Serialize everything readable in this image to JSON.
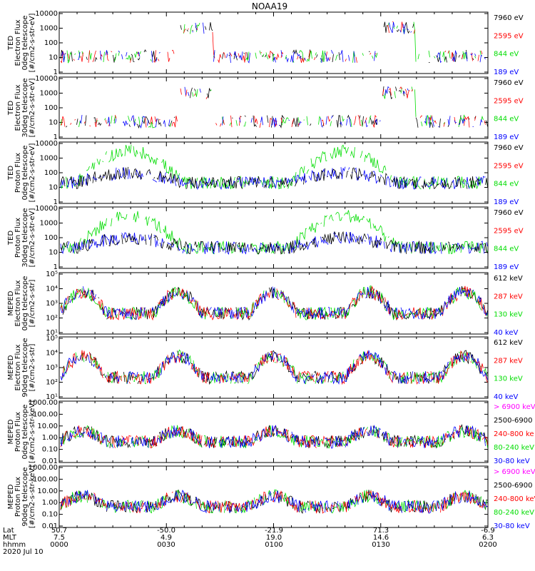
{
  "title": "NOAA19",
  "date": "2020 Jul 10",
  "colors": {
    "black": "#000000",
    "red": "#ff0000",
    "green": "#00dd00",
    "blue": "#0000ff",
    "magenta": "#ff00ff"
  },
  "axis_footer": {
    "labels": [
      "Lat",
      "MLT",
      "hhmm"
    ],
    "ticks": [
      {
        "lat": "50.7",
        "mlt": "7.5",
        "hhmm": "0000"
      },
      {
        "lat": "-50.0",
        "mlt": "4.9",
        "hhmm": "0030"
      },
      {
        "lat": "-21.9",
        "mlt": "19.0",
        "hhmm": "0100"
      },
      {
        "lat": "71.3",
        "mlt": "14.6",
        "hhmm": "0130"
      },
      {
        "lat": "-6.9",
        "mlt": "6.3",
        "hhmm": "0200"
      }
    ]
  },
  "chart_data": [
    {
      "type": "line",
      "ylabel": [
        "TED",
        "Electron Flux",
        "0deg telescope",
        "[#/cm2-s-str-eV]"
      ],
      "yticks": [
        "10000",
        "1000",
        "100",
        "10",
        "1"
      ],
      "ylim": [
        1,
        10000
      ],
      "yscale": "log",
      "series": [
        {
          "name": "7960 eV",
          "color": "black"
        },
        {
          "name": "2595 eV",
          "color": "red"
        },
        {
          "name": "844 eV",
          "color": "green"
        },
        {
          "name": "189 eV",
          "color": "blue"
        }
      ]
    },
    {
      "type": "line",
      "ylabel": [
        "TED",
        "Electron Flux",
        "30deg telescope",
        "[#/cm2-s-str-eV]"
      ],
      "yticks": [
        "10000",
        "1000",
        "100",
        "10",
        "1"
      ],
      "ylim": [
        1,
        10000
      ],
      "yscale": "log",
      "series": [
        {
          "name": "7960 eV",
          "color": "black"
        },
        {
          "name": "2595 eV",
          "color": "red"
        },
        {
          "name": "844 eV",
          "color": "green"
        },
        {
          "name": "189 eV",
          "color": "blue"
        }
      ]
    },
    {
      "type": "line",
      "ylabel": [
        "TED",
        "Proton Flux",
        "0deg telescope",
        "[#/cm2-s-str-eV]"
      ],
      "yticks": [
        "10000",
        "1000",
        "100",
        "10",
        "1"
      ],
      "ylim": [
        1,
        10000
      ],
      "yscale": "log",
      "series": [
        {
          "name": "7960 eV",
          "color": "black"
        },
        {
          "name": "2595 eV",
          "color": "red"
        },
        {
          "name": "844 eV",
          "color": "green"
        },
        {
          "name": "189 eV",
          "color": "blue"
        }
      ]
    },
    {
      "type": "line",
      "ylabel": [
        "TED",
        "Proton Flux",
        "30deg telescope",
        "[#/cm2-s-str-eV]"
      ],
      "yticks": [
        "10000",
        "1000",
        "100",
        "10",
        "1"
      ],
      "ylim": [
        1,
        10000
      ],
      "yscale": "log",
      "series": [
        {
          "name": "7960 eV",
          "color": "black"
        },
        {
          "name": "2595 eV",
          "color": "red"
        },
        {
          "name": "844 eV",
          "color": "green"
        },
        {
          "name": "189 eV",
          "color": "blue"
        }
      ]
    },
    {
      "type": "line",
      "ylabel": [
        "MEPED",
        "Electron Flux",
        "0deg telescope",
        "[#/cm2-s-str]"
      ],
      "yticks": [
        "10⁵",
        "10⁴",
        "10³",
        "10²",
        "10¹"
      ],
      "ylim": [
        10,
        100000
      ],
      "yscale": "log",
      "series": [
        {
          "name": "612 keV",
          "color": "black"
        },
        {
          "name": "287 keV",
          "color": "red"
        },
        {
          "name": "130 keV",
          "color": "green"
        },
        {
          "name": "40 keV",
          "color": "blue"
        }
      ]
    },
    {
      "type": "line",
      "ylabel": [
        "MEPED",
        "Electron Flux",
        "90deg telescope",
        "[#/cm2-s-str]"
      ],
      "yticks": [
        "10⁵",
        "10⁴",
        "10³",
        "10²",
        "10¹"
      ],
      "ylim": [
        10,
        100000
      ],
      "yscale": "log",
      "series": [
        {
          "name": "612 keV",
          "color": "black"
        },
        {
          "name": "287 keV",
          "color": "red"
        },
        {
          "name": "130 keV",
          "color": "green"
        },
        {
          "name": "40 keV",
          "color": "blue"
        }
      ]
    },
    {
      "type": "line",
      "ylabel": [
        "MEPED",
        "Proton Flux",
        "0deg telescope",
        "[#/cm2-s-str-keV]"
      ],
      "yticks": [
        "1000.00",
        "100.00",
        "10.00",
        "1.00",
        "0.10",
        "0.01"
      ],
      "ylim": [
        0.01,
        1000
      ],
      "yscale": "log",
      "series": [
        {
          "name": "> 6900 keV",
          "color": "magenta"
        },
        {
          "name": "2500-6900",
          "color": "black"
        },
        {
          "name": "240-800 ke",
          "color": "red"
        },
        {
          "name": "80-240 keV",
          "color": "green"
        },
        {
          "name": "30-80 keV",
          "color": "blue"
        }
      ]
    },
    {
      "type": "line",
      "ylabel": [
        "MEPED",
        "Proton Flux",
        "90deg telescope",
        "[#/cm2-s-str-keV]"
      ],
      "yticks": [
        "1000.00",
        "100.00",
        "10.00",
        "1.00",
        "0.10",
        "0.01"
      ],
      "ylim": [
        0.01,
        1000
      ],
      "yscale": "log",
      "series": [
        {
          "name": "> 6900 keV",
          "color": "magenta"
        },
        {
          "name": "2500-6900",
          "color": "black"
        },
        {
          "name": "240-800 keV",
          "color": "red"
        },
        {
          "name": "80-240 keV",
          "color": "green"
        },
        {
          "name": "30-80 keV",
          "color": "blue"
        }
      ]
    }
  ]
}
